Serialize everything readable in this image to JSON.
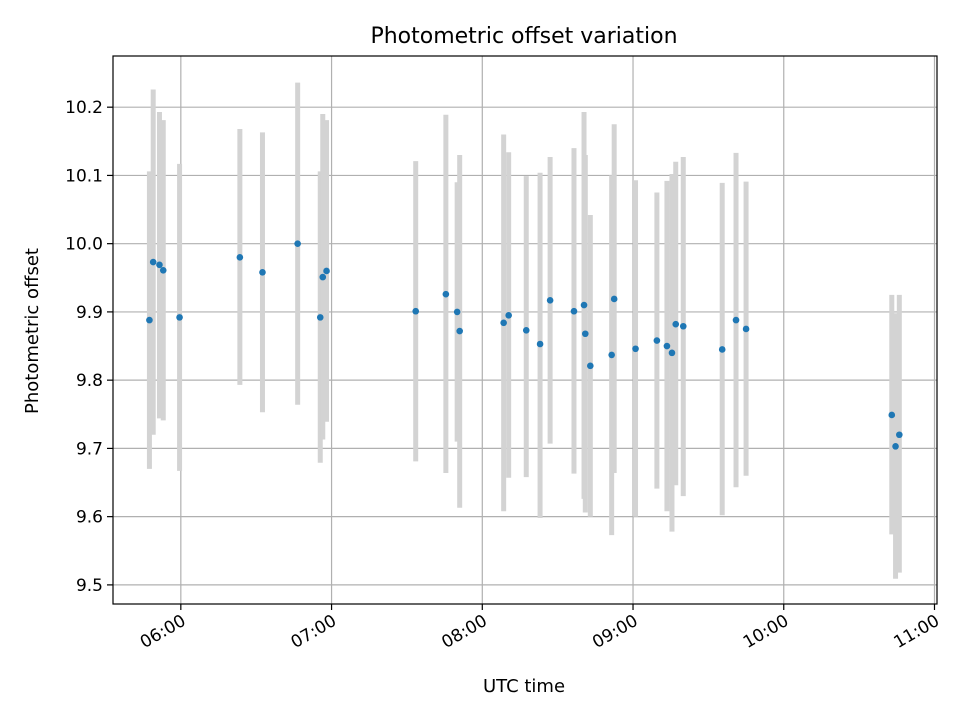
{
  "chart_data": {
    "type": "scatter",
    "title": "Photometric offset variation",
    "xlabel": "UTC time",
    "ylabel": "Photometric offset",
    "x_ticks": [
      "06:00",
      "07:00",
      "08:00",
      "09:00",
      "10:00",
      "11:00"
    ],
    "y_ticks": [
      "9.5",
      "9.6",
      "9.7",
      "9.8",
      "9.9",
      "10.0",
      "10.1",
      "10.2"
    ],
    "ylim": [
      9.472,
      10.275
    ],
    "xlim": [
      "05:33",
      "11:01"
    ],
    "grid": true,
    "colors": {
      "points": "#1f77b4",
      "errorbars": "#d3d3d3",
      "grid": "#b0b0b0"
    },
    "points": [
      {
        "x": "05:47:30",
        "y": 9.888,
        "lo": 9.67,
        "hi": 10.106
      },
      {
        "x": "05:49:00",
        "y": 9.973,
        "lo": 9.72,
        "hi": 10.226
      },
      {
        "x": "05:51:30",
        "y": 9.969,
        "lo": 9.744,
        "hi": 10.193
      },
      {
        "x": "05:53:00",
        "y": 9.961,
        "lo": 9.741,
        "hi": 10.181
      },
      {
        "x": "05:59:30",
        "y": 9.892,
        "lo": 9.667,
        "hi": 10.117
      },
      {
        "x": "06:23:30",
        "y": 9.98,
        "lo": 9.793,
        "hi": 10.168
      },
      {
        "x": "06:32:30",
        "y": 9.958,
        "lo": 9.753,
        "hi": 10.163
      },
      {
        "x": "06:46:30",
        "y": 10.0,
        "lo": 9.764,
        "hi": 10.236
      },
      {
        "x": "06:55:30",
        "y": 9.892,
        "lo": 9.679,
        "hi": 10.106
      },
      {
        "x": "06:56:30",
        "y": 9.951,
        "lo": 9.713,
        "hi": 10.19
      },
      {
        "x": "06:58:00",
        "y": 9.96,
        "lo": 9.739,
        "hi": 10.181
      },
      {
        "x": "07:33:30",
        "y": 9.901,
        "lo": 9.681,
        "hi": 10.121
      },
      {
        "x": "07:45:30",
        "y": 9.926,
        "lo": 9.664,
        "hi": 10.189
      },
      {
        "x": "07:50:00",
        "y": 9.9,
        "lo": 9.71,
        "hi": 10.09
      },
      {
        "x": "07:51:00",
        "y": 9.872,
        "lo": 9.613,
        "hi": 10.13
      },
      {
        "x": "08:08:30",
        "y": 9.884,
        "lo": 9.608,
        "hi": 10.16
      },
      {
        "x": "08:10:30",
        "y": 9.895,
        "lo": 9.657,
        "hi": 10.134
      },
      {
        "x": "08:17:30",
        "y": 9.873,
        "lo": 9.658,
        "hi": 10.099
      },
      {
        "x": "08:23:00",
        "y": 9.853,
        "lo": 9.598,
        "hi": 10.104
      },
      {
        "x": "08:27:00",
        "y": 9.917,
        "lo": 9.707,
        "hi": 10.127
      },
      {
        "x": "08:36:30",
        "y": 9.901,
        "lo": 9.663,
        "hi": 10.14
      },
      {
        "x": "08:40:30",
        "y": 9.91,
        "lo": 9.626,
        "hi": 10.193
      },
      {
        "x": "08:41:00",
        "y": 9.868,
        "lo": 9.606,
        "hi": 10.13
      },
      {
        "x": "08:43:00",
        "y": 9.821,
        "lo": 9.6,
        "hi": 10.042
      },
      {
        "x": "08:51:30",
        "y": 9.837,
        "lo": 9.573,
        "hi": 10.1
      },
      {
        "x": "08:52:30",
        "y": 9.919,
        "lo": 9.664,
        "hi": 10.175
      },
      {
        "x": "09:01:00",
        "y": 9.846,
        "lo": 9.6,
        "hi": 10.093
      },
      {
        "x": "09:09:30",
        "y": 9.858,
        "lo": 9.641,
        "hi": 10.075
      },
      {
        "x": "09:13:30",
        "y": 9.85,
        "lo": 9.608,
        "hi": 10.092
      },
      {
        "x": "09:15:30",
        "y": 9.84,
        "lo": 9.578,
        "hi": 10.102
      },
      {
        "x": "09:17:00",
        "y": 9.882,
        "lo": 9.646,
        "hi": 10.12
      },
      {
        "x": "09:20:00",
        "y": 9.879,
        "lo": 9.63,
        "hi": 10.127
      },
      {
        "x": "09:35:30",
        "y": 9.845,
        "lo": 9.602,
        "hi": 10.089
      },
      {
        "x": "09:41:00",
        "y": 9.888,
        "lo": 9.643,
        "hi": 10.133
      },
      {
        "x": "09:45:00",
        "y": 9.875,
        "lo": 9.66,
        "hi": 10.091
      },
      {
        "x": "10:43:00",
        "y": 9.749,
        "lo": 9.574,
        "hi": 9.925
      },
      {
        "x": "10:44:30",
        "y": 9.703,
        "lo": 9.509,
        "hi": 9.898
      },
      {
        "x": "10:46:00",
        "y": 9.72,
        "lo": 9.518,
        "hi": 9.925
      }
    ]
  }
}
